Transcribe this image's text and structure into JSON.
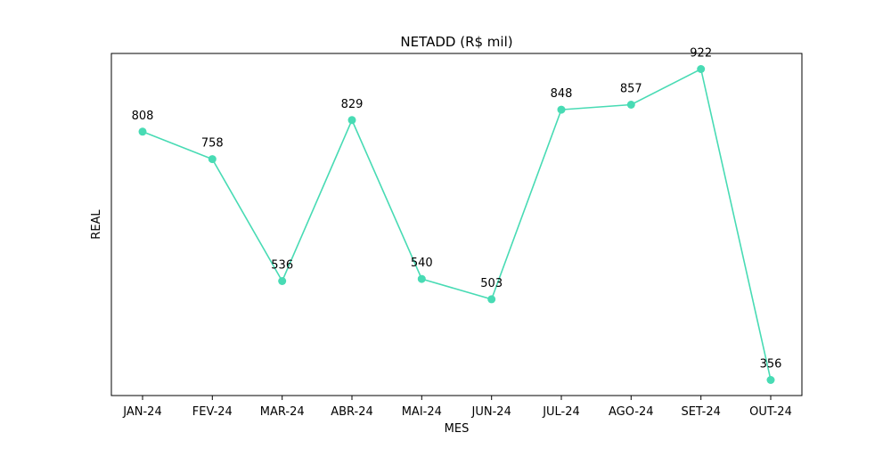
{
  "chart_data": {
    "type": "line",
    "title": "NETADD (R$ mil)",
    "xlabel": "MES",
    "ylabel": "REAL",
    "categories": [
      "JAN-24",
      "FEV-24",
      "MAR-24",
      "ABR-24",
      "MAI-24",
      "JUN-24",
      "JUL-24",
      "AGO-24",
      "SET-24",
      "OUT-24"
    ],
    "series": [
      {
        "values": [
          808,
          758,
          536,
          829,
          540,
          503,
          848,
          857,
          922,
          356
        ],
        "color": "#48dbb4"
      }
    ],
    "data_labels": [
      "808",
      "758",
      "536",
      "829",
      "540",
      "503",
      "848",
      "857",
      "922",
      "356"
    ],
    "ylim": [
      327.7,
      950.3
    ],
    "y_ticks_visible": false,
    "grid": false,
    "legend": "none",
    "marker": "circle"
  }
}
